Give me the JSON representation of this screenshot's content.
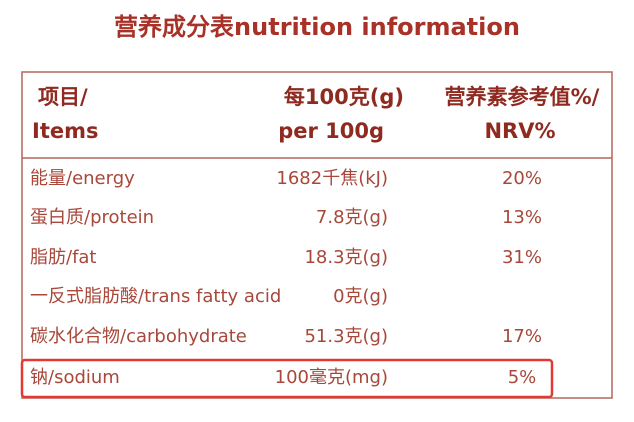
{
  "title": "营养成分表nutrition information",
  "table": {
    "header": [
      [
        "项目/",
        "Items"
      ],
      [
        "每100克(g)",
        "per 100g"
      ],
      [
        "营养素参考值%/",
        "NRV%"
      ]
    ],
    "rows": [
      [
        "能量/energy",
        "1682千焦(kJ)",
        "20%"
      ],
      [
        "蛋白质/protein",
        "7.8克(g)",
        "13%"
      ],
      [
        "脂肪/fat",
        "18.3克(g)",
        "31%"
      ],
      [
        "一反式脂肪酸/trans fatty acid",
        "0克(g)"
      ],
      [
        "碳水化合物/carbohydrate",
        "51.3克(g)",
        "17%"
      ],
      [
        "钠/sodium",
        "100毫克(mg)",
        "5%"
      ]
    ]
  }
}
